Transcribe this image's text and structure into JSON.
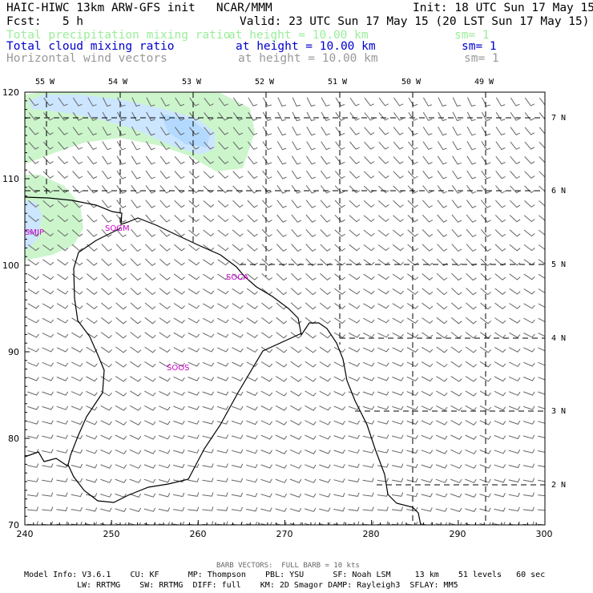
{
  "header": {
    "title_left": "HAIC-HIWC 13km ARW-GFS init   NCAR/MMM",
    "init": "Init: 18 UTC Sun 17 May 15",
    "fcst": "Fcst:   5 h",
    "valid": "Valid: 23 UTC Sun 17 May 15 (20 LST Sun 17 May 15)",
    "fields": [
      {
        "name": "Total precipitation mixing ratio",
        "level": "at height = 10.00 km",
        "sm": "sm= 1",
        "color": "#99ee99"
      },
      {
        "name": "Total cloud mixing ratio",
        "level": "at height = 10.00 km",
        "sm": "sm= 1",
        "color": "#0000cc"
      },
      {
        "name": "Horizontal wind vectors",
        "level": "at height = 10.00 km",
        "sm": "sm= 1",
        "color": "#999999"
      }
    ]
  },
  "map": {
    "lon_labels": [
      "55 W",
      "54 W",
      "53 W",
      "52 W",
      "51 W",
      "50 W",
      "49 W"
    ],
    "lat_labels": [
      "7 N",
      "6 N",
      "5 N",
      "4 N",
      "3 N",
      "2 N"
    ],
    "x_ticks": [
      "240",
      "250",
      "260",
      "270",
      "280",
      "290",
      "300"
    ],
    "y_ticks": [
      "120",
      "110",
      "100",
      "90",
      "80",
      "70"
    ],
    "stations": [
      {
        "label": "SMJP",
        "color": "#cc00cc"
      },
      {
        "label": "SOGM",
        "color": "#cc00cc"
      },
      {
        "label": "SOCA",
        "color": "#cc00cc"
      },
      {
        "label": "SOOS",
        "color": "#cc00cc"
      }
    ],
    "colors": {
      "precip": "#ccf5cc",
      "cloud": "#cce6ff",
      "cloud_core": "#b3d9ff",
      "barb": "#666666",
      "coast": "#000000"
    }
  },
  "footer": {
    "barb_note": "BARB VECTORS:  FULL BARB = 10 kts",
    "line1": "Model Info: V3.6.1    CU: KF      MP: Thompson    PBL: YSU      SF: Noah LSM     13 km    51 levels   60 sec",
    "line2": "LW: RRTMG    SW: RRTMG  DIFF: full    KM: 2D Smagor DAMP: Rayleigh3  SFLAY: MM5"
  }
}
